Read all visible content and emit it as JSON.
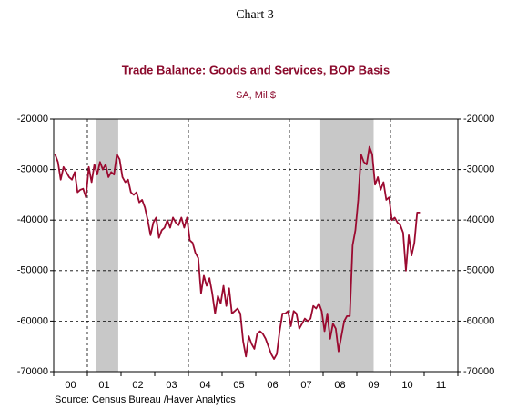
{
  "chart_data": {
    "type": "line",
    "heading": "Chart 3",
    "title": "Trade Balance:  Goods and Services, BOP Basis",
    "subtitle": "SA, Mil.$",
    "source": "Source:  Census Bureau /Haver Analytics",
    "xlim": [
      2000,
      2012
    ],
    "ylim": [
      -70000,
      -20000
    ],
    "yticks": [
      -70000,
      -60000,
      -50000,
      -40000,
      -30000,
      -20000
    ],
    "y2lim": [
      -70000,
      -20000
    ],
    "y2ticks": [
      -70000,
      -60000,
      -50000,
      -40000,
      -30000,
      -20000
    ],
    "xticks": [
      {
        "value": 2000.5,
        "label": "00"
      },
      {
        "value": 2001.5,
        "label": "01"
      },
      {
        "value": 2002.5,
        "label": "02"
      },
      {
        "value": 2003.5,
        "label": "03"
      },
      {
        "value": 2004.5,
        "label": "04"
      },
      {
        "value": 2005.5,
        "label": "05"
      },
      {
        "value": 2006.5,
        "label": "06"
      },
      {
        "value": 2007.5,
        "label": "07"
      },
      {
        "value": 2008.5,
        "label": "08"
      },
      {
        "value": 2009.5,
        "label": "09"
      },
      {
        "value": 2010.5,
        "label": "10"
      },
      {
        "value": 2011.5,
        "label": "11"
      }
    ],
    "xminor": [
      2000,
      2001,
      2002,
      2003,
      2004,
      2005,
      2006,
      2007,
      2008,
      2009,
      2010,
      2011,
      2012
    ],
    "xgrid": [
      2001,
      2004,
      2007,
      2010
    ],
    "grid": true,
    "shaded_periods": [
      [
        2001.25,
        2001.917
      ],
      [
        2007.917,
        2009.5
      ]
    ],
    "shade_color": "#c8c8c8",
    "color": "#9b0a30",
    "x": [
      2000.042,
      2000.125,
      2000.208,
      2000.292,
      2000.375,
      2000.458,
      2000.542,
      2000.625,
      2000.708,
      2000.792,
      2000.875,
      2000.958,
      2001.042,
      2001.125,
      2001.208,
      2001.292,
      2001.375,
      2001.458,
      2001.542,
      2001.625,
      2001.708,
      2001.792,
      2001.875,
      2001.958,
      2002.042,
      2002.125,
      2002.208,
      2002.292,
      2002.375,
      2002.458,
      2002.542,
      2002.625,
      2002.708,
      2002.792,
      2002.875,
      2002.958,
      2003.042,
      2003.125,
      2003.208,
      2003.292,
      2003.375,
      2003.458,
      2003.542,
      2003.625,
      2003.708,
      2003.792,
      2003.875,
      2003.958,
      2004.042,
      2004.125,
      2004.208,
      2004.292,
      2004.375,
      2004.458,
      2004.542,
      2004.625,
      2004.708,
      2004.792,
      2004.875,
      2004.958,
      2005.042,
      2005.125,
      2005.208,
      2005.292,
      2005.375,
      2005.458,
      2005.542,
      2005.625,
      2005.708,
      2005.792,
      2005.875,
      2005.958,
      2006.042,
      2006.125,
      2006.208,
      2006.292,
      2006.375,
      2006.458,
      2006.542,
      2006.625,
      2006.708,
      2006.792,
      2006.875,
      2006.958,
      2007.042,
      2007.125,
      2007.208,
      2007.292,
      2007.375,
      2007.458,
      2007.542,
      2007.625,
      2007.708,
      2007.792,
      2007.875,
      2007.958,
      2008.042,
      2008.125,
      2008.208,
      2008.292,
      2008.375,
      2008.458,
      2008.542,
      2008.625,
      2008.708,
      2008.792,
      2008.875,
      2008.958,
      2009.042,
      2009.125,
      2009.208,
      2009.292,
      2009.375,
      2009.458,
      2009.542,
      2009.625,
      2009.708,
      2009.792,
      2009.875,
      2009.958,
      2010.042,
      2010.125,
      2010.208,
      2010.292,
      2010.375,
      2010.458,
      2010.542,
      2010.625,
      2010.708,
      2010.792,
      2010.875
    ],
    "values": [
      -27000,
      -28500,
      -32000,
      -29500,
      -30500,
      -31500,
      -32000,
      -30500,
      -34500,
      -34000,
      -33800,
      -35500,
      -29500,
      -32500,
      -29000,
      -31000,
      -28500,
      -30000,
      -29000,
      -31500,
      -30500,
      -31000,
      -27000,
      -28000,
      -31500,
      -32500,
      -32000,
      -34500,
      -35000,
      -34500,
      -36500,
      -36000,
      -37500,
      -40000,
      -43000,
      -40500,
      -39500,
      -43500,
      -42000,
      -41500,
      -40000,
      -41500,
      -39500,
      -40500,
      -41000,
      -39500,
      -41500,
      -39500,
      -44000,
      -44500,
      -46500,
      -47500,
      -54500,
      -51000,
      -53000,
      -51500,
      -54500,
      -58500,
      -55000,
      -56500,
      -53000,
      -57000,
      -53500,
      -58500,
      -58000,
      -57500,
      -58500,
      -64000,
      -67000,
      -63000,
      -64500,
      -65500,
      -62500,
      -62000,
      -62500,
      -63500,
      -65000,
      -66500,
      -67500,
      -66500,
      -62000,
      -58500,
      -58500,
      -58000,
      -61000,
      -58000,
      -58500,
      -61500,
      -60500,
      -59500,
      -60000,
      -59500,
      -57000,
      -57500,
      -56500,
      -58000,
      -62000,
      -58500,
      -63500,
      -60500,
      -61500,
      -66000,
      -63000,
      -60000,
      -59000,
      -59000,
      -45000,
      -42000,
      -36000,
      -27000,
      -28500,
      -29000,
      -25500,
      -27000,
      -33000,
      -31500,
      -34000,
      -32500,
      -36000,
      -35500,
      -40000,
      -39500,
      -40500,
      -41000,
      -42500,
      -50000,
      -43000,
      -47000,
      -44500,
      -38500,
      -38500
    ]
  }
}
